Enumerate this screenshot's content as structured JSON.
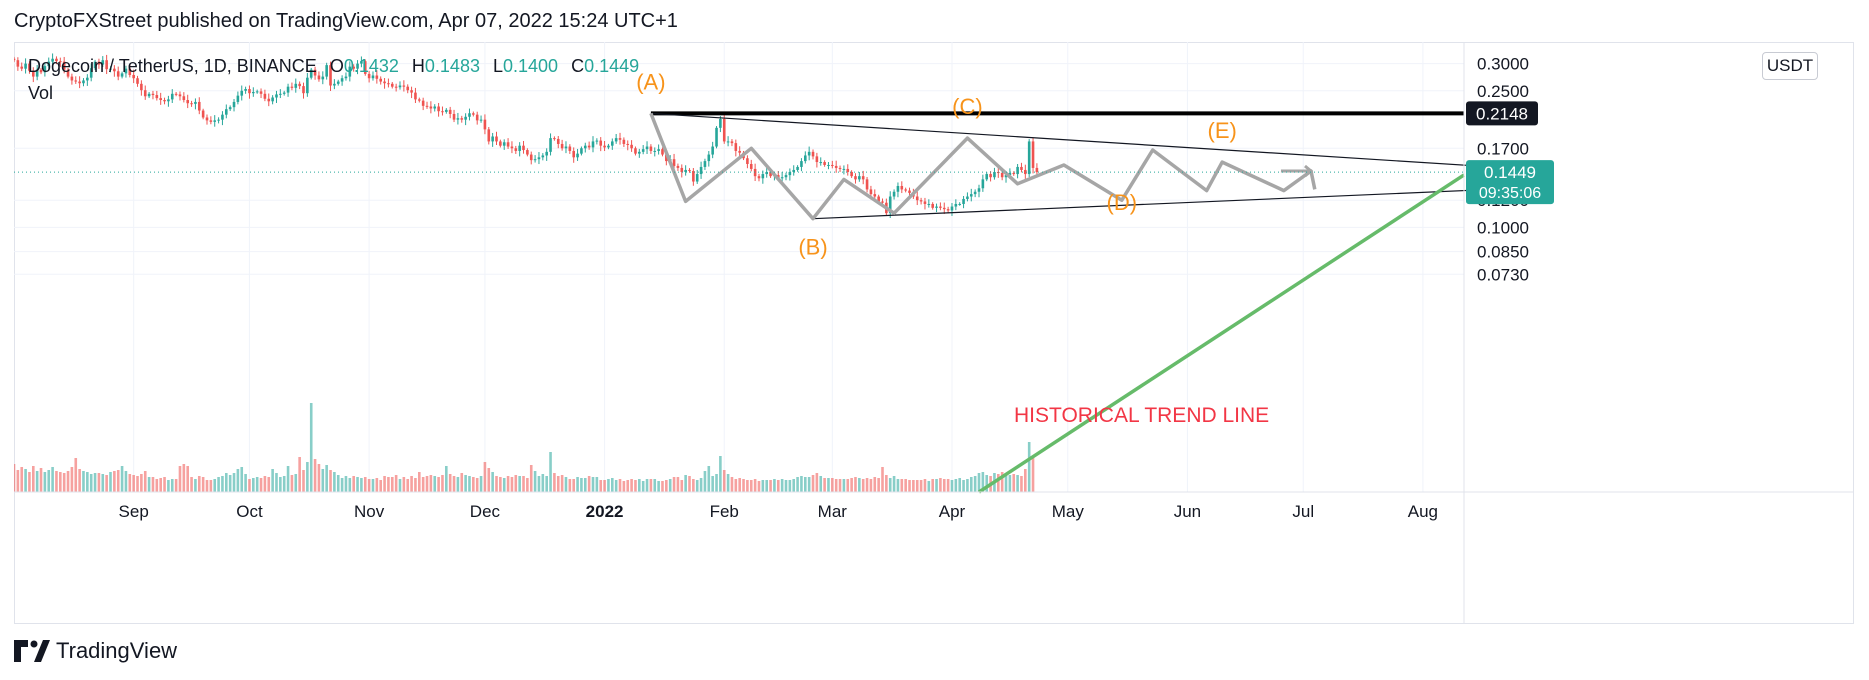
{
  "header": {
    "publisher_line": "CryptoFXStreet published on TradingView.com, Apr 07, 2022 15:24 UTC+1"
  },
  "legend": {
    "symbol": "Dogecoin / TetherUS, 1D, BINANCE",
    "open_label": "O",
    "open": "0.1432",
    "high_label": "H",
    "high": "0.1483",
    "low_label": "L",
    "low": "0.1400",
    "close_label": "C",
    "close": "0.1449",
    "volume_label": "Vol"
  },
  "currency": "USDT",
  "footer": {
    "brand": "TradingView",
    "logo_icon": "tradingview-logo-icon"
  },
  "colors": {
    "up": "#26a69a",
    "down": "#ef5350",
    "pattern": "#a6a6a6",
    "label": "#f7931a",
    "trend": "#66bb6a",
    "historical_text": "#f23645",
    "resistance": "#000000"
  },
  "chart_data": {
    "type": "candlestick",
    "x_tick_labels": [
      "Sep",
      "Oct",
      "Nov",
      "Dec",
      "2022",
      "Feb",
      "Mar",
      "Apr",
      "May",
      "Jun",
      "Jul",
      "Aug"
    ],
    "y_tick_labels": [
      "0.3000",
      "0.2500",
      "0.1700",
      "0.1200",
      "0.1000",
      "0.0850",
      "0.0730"
    ],
    "y_ticks": [
      0.3,
      0.25,
      0.17,
      0.12,
      0.1,
      0.085,
      0.073
    ],
    "y_scale": "log",
    "ylim": [
      0.067,
      0.31
    ],
    "last_price": "0.1449",
    "countdown": "09:35:06",
    "resistance_level": "0.2148",
    "key_points": [
      {
        "label": "(A)",
        "date": "2022-01-13",
        "value": 0.2148
      },
      {
        "label": "(B)",
        "date": "2022-02-24",
        "value": 0.106
      },
      {
        "label": "(C)",
        "date": "2022-04-05",
        "value": 0.182
      },
      {
        "label": "(D)",
        "date": "2022-05-15",
        "value": 0.12
      },
      {
        "label": "(E)",
        "date": "2022-06-10",
        "value": 0.155
      }
    ],
    "annotation": "HISTORICAL TREND LINE",
    "ohlc": {
      "start_date": "2021-08-01",
      "closes": [
        0.307,
        0.294,
        0.29,
        0.3,
        0.286,
        0.275,
        0.288,
        0.283,
        0.295,
        0.304,
        0.31,
        0.305,
        0.304,
        0.288,
        0.275,
        0.268,
        0.266,
        0.263,
        0.268,
        0.273,
        0.291,
        0.304,
        0.298,
        0.307,
        0.289,
        0.29,
        0.285,
        0.275,
        0.281,
        0.29,
        0.278,
        0.272,
        0.262,
        0.251,
        0.241,
        0.245,
        0.243,
        0.238,
        0.235,
        0.233,
        0.236,
        0.245,
        0.244,
        0.241,
        0.235,
        0.23,
        0.229,
        0.232,
        0.219,
        0.209,
        0.205,
        0.203,
        0.205,
        0.206,
        0.213,
        0.221,
        0.224,
        0.232,
        0.242,
        0.25,
        0.253,
        0.246,
        0.248,
        0.249,
        0.245,
        0.237,
        0.233,
        0.239,
        0.244,
        0.245,
        0.247,
        0.257,
        0.255,
        0.262,
        0.258,
        0.246,
        0.273,
        0.288,
        0.277,
        0.27,
        0.275,
        0.297,
        0.259,
        0.262,
        0.266,
        0.272,
        0.275,
        0.294,
        0.29,
        0.3,
        0.305,
        0.28,
        0.272,
        0.277,
        0.271,
        0.266,
        0.263,
        0.262,
        0.257,
        0.256,
        0.259,
        0.257,
        0.251,
        0.247,
        0.236,
        0.234,
        0.226,
        0.225,
        0.222,
        0.225,
        0.218,
        0.217,
        0.22,
        0.214,
        0.206,
        0.208,
        0.206,
        0.21,
        0.215,
        0.213,
        0.205,
        0.206,
        0.193,
        0.178,
        0.184,
        0.178,
        0.173,
        0.177,
        0.172,
        0.17,
        0.167,
        0.173,
        0.168,
        0.163,
        0.157,
        0.158,
        0.16,
        0.162,
        0.166,
        0.182,
        0.181,
        0.175,
        0.17,
        0.172,
        0.167,
        0.16,
        0.164,
        0.17,
        0.173,
        0.171,
        0.178,
        0.179,
        0.173,
        0.171,
        0.173,
        0.178,
        0.182,
        0.18,
        0.175,
        0.174,
        0.17,
        0.164,
        0.166,
        0.169,
        0.172,
        0.167,
        0.167,
        0.169,
        0.163,
        0.156,
        0.158,
        0.151,
        0.149,
        0.145,
        0.147,
        0.146,
        0.136,
        0.143,
        0.15,
        0.156,
        0.163,
        0.172,
        0.195,
        0.207,
        0.178,
        0.178,
        0.176,
        0.167,
        0.165,
        0.159,
        0.153,
        0.148,
        0.141,
        0.139,
        0.143,
        0.145,
        0.141,
        0.142,
        0.139,
        0.14,
        0.142,
        0.145,
        0.147,
        0.15,
        0.156,
        0.162,
        0.166,
        0.161,
        0.155,
        0.155,
        0.152,
        0.152,
        0.151,
        0.149,
        0.148,
        0.148,
        0.145,
        0.141,
        0.138,
        0.141,
        0.138,
        0.129,
        0.125,
        0.123,
        0.119,
        0.118,
        0.11,
        0.123,
        0.127,
        0.132,
        0.129,
        0.128,
        0.126,
        0.123,
        0.12,
        0.119,
        0.117,
        0.117,
        0.114,
        0.115,
        0.114,
        0.113,
        0.112,
        0.115,
        0.117,
        0.117,
        0.121,
        0.123,
        0.125,
        0.127,
        0.13,
        0.138,
        0.143,
        0.14,
        0.145,
        0.144,
        0.14,
        0.142,
        0.144,
        0.143,
        0.15,
        0.147,
        0.143,
        0.178,
        0.149,
        0.1449
      ],
      "volumes": [
        2.8,
        2.2,
        2.5,
        2.3,
        2.0,
        2.6,
        2.1,
        2.4,
        2.0,
        2.2,
        2.5,
        2.1,
        2.0,
        1.9,
        2.1,
        2.5,
        3.4,
        2.3,
        2.1,
        2.0,
        1.8,
        1.9,
        1.9,
        1.8,
        1.7,
        2.0,
        2.1,
        2.2,
        2.6,
        2.1,
        1.8,
        1.7,
        1.6,
        1.8,
        2.1,
        1.5,
        1.5,
        1.3,
        1.4,
        1.5,
        1.2,
        1.3,
        1.3,
        2.6,
        2.8,
        2.6,
        1.5,
        1.3,
        1.6,
        1.5,
        1.2,
        1.2,
        1.3,
        1.5,
        1.6,
        1.9,
        1.7,
        1.9,
        2.3,
        2.5,
        1.8,
        1.3,
        1.4,
        1.5,
        1.4,
        1.6,
        1.5,
        2.3,
        1.9,
        1.5,
        1.6,
        2.6,
        1.7,
        1.8,
        3.5,
        2.2,
        3.0,
        8.9,
        3.3,
        2.8,
        2.3,
        2.7,
        2.2,
        2.0,
        1.7,
        1.4,
        1.6,
        1.4,
        1.6,
        1.5,
        1.4,
        1.5,
        1.3,
        1.3,
        1.4,
        1.2,
        1.6,
        1.5,
        1.5,
        1.7,
        1.3,
        1.5,
        1.3,
        1.6,
        1.4,
        2.0,
        1.5,
        1.6,
        1.7,
        1.6,
        1.5,
        1.7,
        2.6,
        1.8,
        1.6,
        1.5,
        1.9,
        1.7,
        1.6,
        1.5,
        1.4,
        1.6,
        3.0,
        2.4,
        2.0,
        1.6,
        1.5,
        1.4,
        1.6,
        1.5,
        1.7,
        1.6,
        1.6,
        1.4,
        2.7,
        2.1,
        1.6,
        1.8,
        1.6,
        4.0,
        1.9,
        1.6,
        1.7,
        1.5,
        1.3,
        1.3,
        1.5,
        1.4,
        1.4,
        1.6,
        1.5,
        1.5,
        1.2,
        1.2,
        1.3,
        1.4,
        1.2,
        1.3,
        1.1,
        1.2,
        1.3,
        1.2,
        1.3,
        1.1,
        1.3,
        1.3,
        1.3,
        1.1,
        1.1,
        1.2,
        1.3,
        1.5,
        1.5,
        1.2,
        1.7,
        1.6,
        1.3,
        1.2,
        1.4,
        2.1,
        2.6,
        1.6,
        1.8,
        3.6,
        2.2,
        1.8,
        1.5,
        1.3,
        1.4,
        1.3,
        1.2,
        1.2,
        1.3,
        1.1,
        1.2,
        1.2,
        1.2,
        1.3,
        1.2,
        1.3,
        1.2,
        1.2,
        1.3,
        1.5,
        1.6,
        1.5,
        1.5,
        1.7,
        1.9,
        1.6,
        1.4,
        1.4,
        1.4,
        1.3,
        1.3,
        1.3,
        1.3,
        1.4,
        1.5,
        1.4,
        1.3,
        1.4,
        1.3,
        1.5,
        1.4,
        2.5,
        1.7,
        1.4,
        1.6,
        1.3,
        1.3,
        1.3,
        1.2,
        1.2,
        1.2,
        1.2,
        1.3,
        1.1,
        1.3,
        1.3,
        1.4,
        1.3,
        1.3,
        1.2,
        1.3,
        1.4,
        1.2,
        1.3,
        1.5,
        1.6,
        1.9,
        2.0,
        1.7,
        1.6,
        1.9,
        1.8,
        2.0,
        1.9,
        1.7,
        1.8,
        1.7,
        1.6,
        2.3,
        5.0,
        3.4
      ]
    }
  }
}
